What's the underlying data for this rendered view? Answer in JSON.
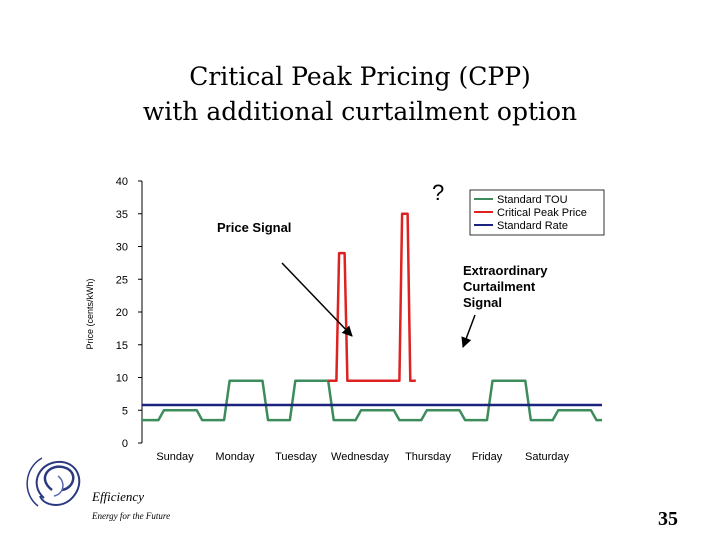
{
  "slide": {
    "title_line1": "Critical Peak Pricing (CPP)",
    "title_line2": "with additional curtailment option",
    "logo_text_1": "Efficiency",
    "logo_text_2": "Energy for the Future",
    "page_number": "35"
  },
  "chart_data": {
    "type": "line",
    "title": "",
    "xlabel": "",
    "ylabel": "Price (cents/kWh)",
    "ylim": [
      0,
      40
    ],
    "yticks": [
      0,
      5,
      10,
      15,
      20,
      25,
      30,
      35,
      40
    ],
    "categories": [
      "Sunday",
      "Monday",
      "Tuesday",
      "Wednesday",
      "Thursday",
      "Friday",
      "Saturday"
    ],
    "x_unit": "hours since start of week",
    "xlim": [
      0,
      168
    ],
    "legend": [
      "Standard TOU",
      "Critical Peak Price",
      "Standard Rate"
    ],
    "legend_position": "top-right",
    "series": [
      {
        "name": "Standard TOU",
        "color": "#3c8c5c",
        "x": [
          0,
          6,
          8,
          20,
          22,
          30,
          32,
          44,
          46,
          54,
          56,
          68,
          70,
          78,
          80,
          92,
          94,
          102,
          104,
          116,
          118,
          126,
          128,
          140,
          142,
          150,
          152,
          164,
          166,
          168
        ],
        "y": [
          3.5,
          3.5,
          5,
          5,
          3.5,
          3.5,
          9.5,
          9.5,
          3.5,
          3.5,
          9.5,
          9.5,
          3.5,
          3.5,
          5,
          5,
          3.5,
          3.5,
          5,
          5,
          3.5,
          3.5,
          9.5,
          9.5,
          3.5,
          3.5,
          5,
          5,
          3.5,
          3.5
        ]
      },
      {
        "name": "Critical Peak Price",
        "color": "#dd2222",
        "x": [
          68,
          71,
          72,
          74,
          75,
          78,
          92,
          94,
          95,
          97,
          98,
          100
        ],
        "y": [
          9.5,
          9.5,
          29,
          29,
          9.5,
          9.5,
          9.5,
          9.5,
          35,
          35,
          9.5,
          9.5
        ]
      },
      {
        "name": "Standard Rate",
        "color": "#1a237e",
        "x": [
          0,
          168
        ],
        "y": [
          5.8,
          5.8
        ]
      }
    ],
    "annotations": {
      "price_signal": "Price Signal",
      "question_mark": "?",
      "curtailment_line1": "Extraordinary",
      "curtailment_line2": "Curtailment",
      "curtailment_line3": "Signal"
    }
  }
}
